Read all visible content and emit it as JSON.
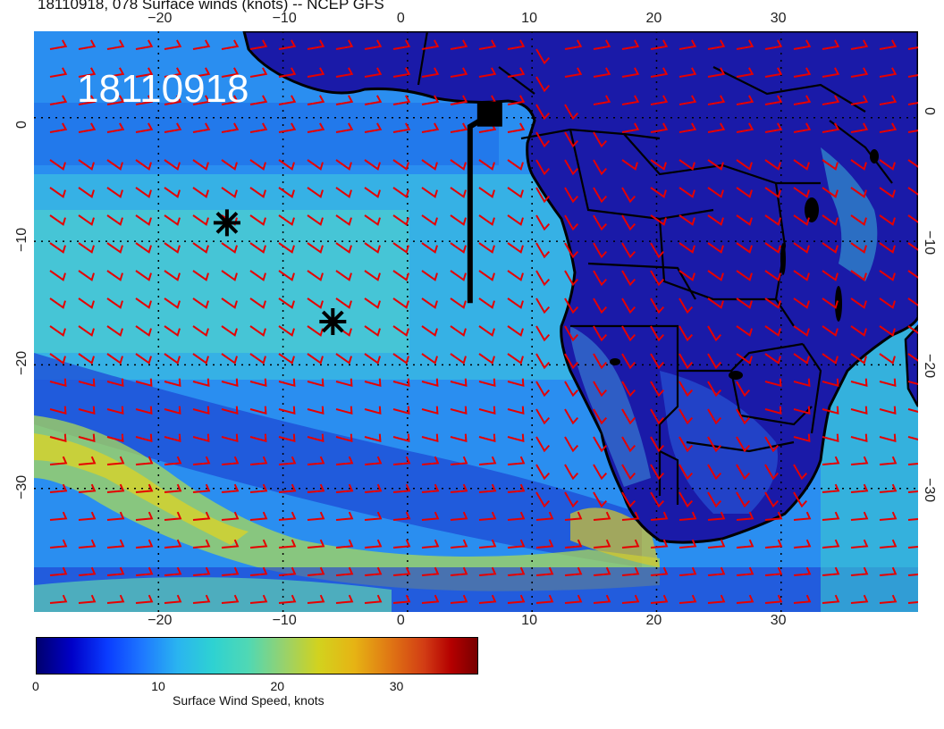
{
  "title": "18110918, 078 Surface winds (knots) -- NCEP GFS",
  "timestamp_stamp": "18110918",
  "map": {
    "lon_range": [
      -30,
      41
    ],
    "lat_range": [
      -40,
      7
    ],
    "lon_ticks": [
      "−20",
      "−10",
      "0",
      "10",
      "20",
      "30"
    ],
    "lat_ticks": [
      "0",
      "−10",
      "−20",
      "−30"
    ],
    "colors": {
      "ocean_calm": "#1e5aff",
      "ocean_mid": "#3cc8dc",
      "land_dark": "#14148c",
      "barb": "#e60000",
      "coast": "#000000"
    }
  },
  "markers": [
    {
      "type": "asterisk",
      "lon": -14.5,
      "lat": -8.5
    },
    {
      "type": "asterisk",
      "lon": -6,
      "lat": -16.5
    },
    {
      "type": "square",
      "lon": 6.6,
      "lat": 0.3
    }
  ],
  "colorbar": {
    "ticks": [
      "0",
      "10",
      "20",
      "30"
    ],
    "tick_values": [
      0,
      10,
      20,
      30
    ],
    "max": 37,
    "title": "Surface Wind Speed, knots"
  }
}
